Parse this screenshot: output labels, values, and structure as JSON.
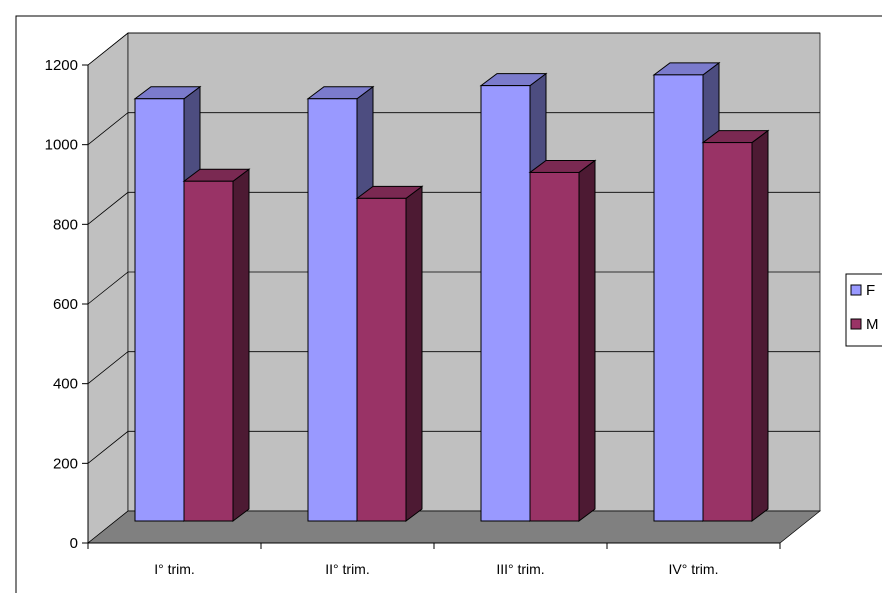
{
  "chart_data": {
    "type": "bar",
    "style": "3d-clustered-column",
    "categories": [
      "I° trim.",
      "II° trim.",
      "III° trim.",
      "IV° trim."
    ],
    "series": [
      {
        "name": "F",
        "values": [
          1060,
          1060,
          1093,
          1120
        ],
        "color": "#9999ff",
        "side_color": "#4d4d80",
        "top_color": "#7b7bcc"
      },
      {
        "name": "M",
        "values": [
          853,
          810,
          875,
          950
        ],
        "color": "#993366",
        "side_color": "#4d1a33",
        "top_color": "#7a2952"
      }
    ],
    "ylim": [
      0,
      1200
    ],
    "yticks": [
      "0",
      "200",
      "400",
      "600",
      "800",
      "1000",
      "1200"
    ],
    "grid": true,
    "legend_position": "right",
    "colors": {
      "wall": "#c0c0c0",
      "floor": "#808080",
      "grid": "#000000"
    }
  }
}
